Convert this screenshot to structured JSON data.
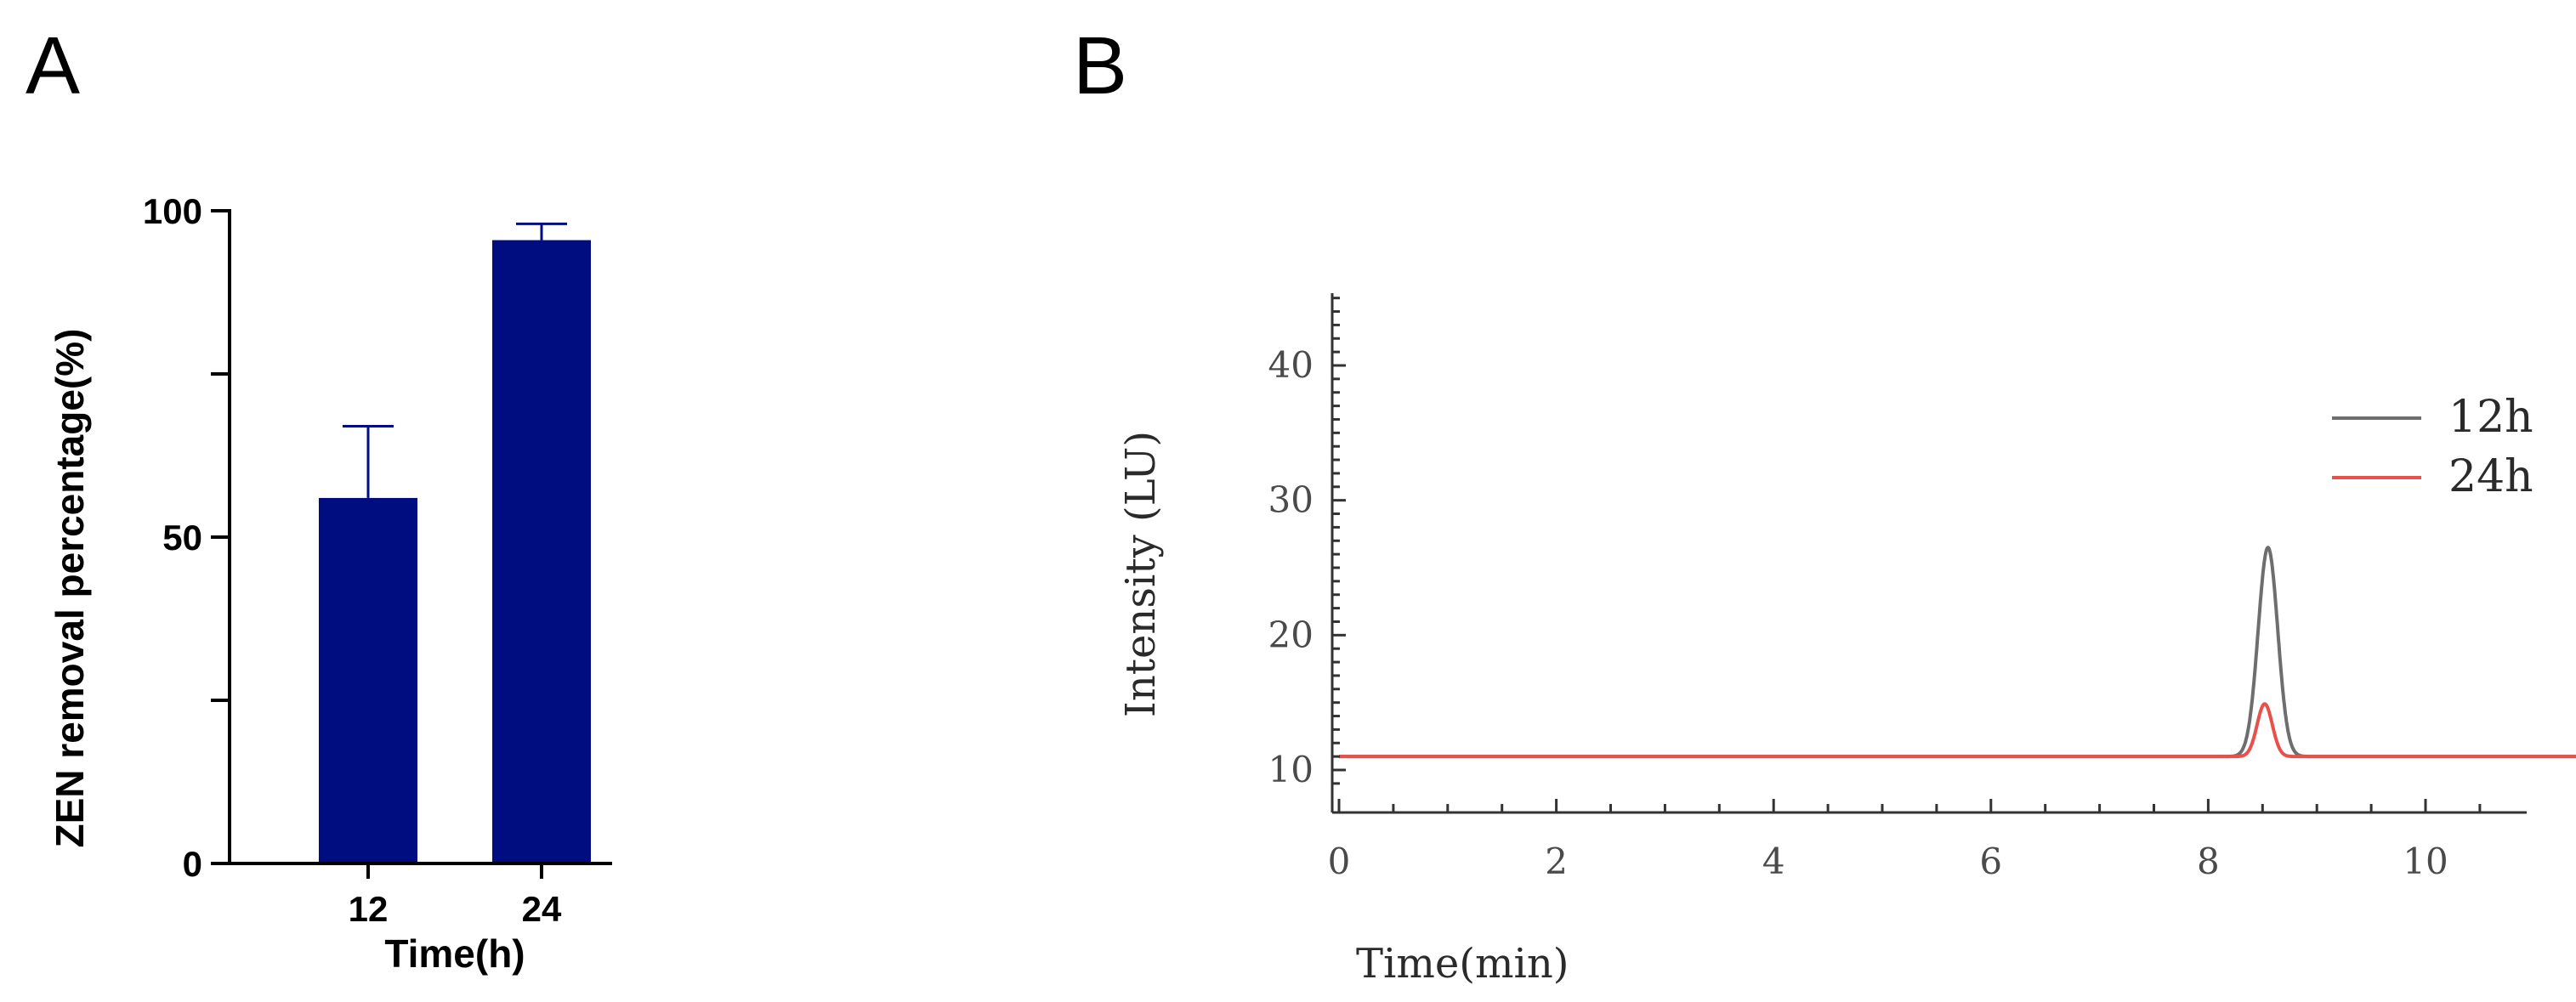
{
  "panels": {
    "a": {
      "letter": "A"
    },
    "b": {
      "letter": "B"
    }
  },
  "colors": {
    "bar": "#000d80",
    "series_12h": "#6e6e6e",
    "series_24h": "#e8504a",
    "axis_a": "#000000",
    "axis_b": "#333333"
  },
  "chart_data": [
    {
      "panel": "A",
      "type": "bar",
      "categories": [
        "12",
        "24"
      ],
      "values": [
        56,
        95.5
      ],
      "errors": [
        11,
        2.5
      ],
      "xlabel": "Time(h)",
      "ylabel": "ZEN removal percentage(%)",
      "ylim": [
        0,
        100
      ],
      "yticks": [
        0,
        50,
        100
      ],
      "grid": false,
      "legend": null
    },
    {
      "panel": "B",
      "type": "line",
      "xlabel": "Time(min)",
      "ylabel": "Intensity (LU)",
      "xlim": [
        -0.2,
        11.4
      ],
      "ylim": [
        9,
        45
      ],
      "xticks": [
        0,
        2,
        4,
        6,
        8,
        10
      ],
      "yticks": [
        10,
        20,
        30,
        40
      ],
      "grid": false,
      "legend": "top-right",
      "series": [
        {
          "name": "12h",
          "baseline": 11,
          "peak_x": 8.55,
          "peak_y": 26.5,
          "peak_sigma": 0.09
        },
        {
          "name": "24h",
          "baseline": 11,
          "peak_x": 8.52,
          "peak_y": 14.9,
          "peak_sigma": 0.07
        }
      ]
    }
  ]
}
